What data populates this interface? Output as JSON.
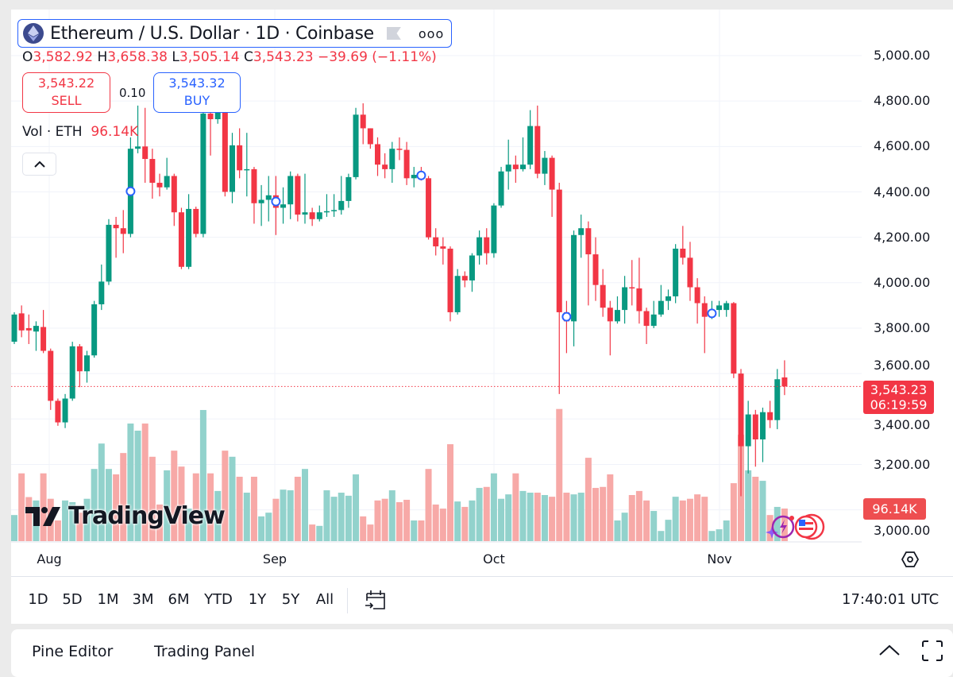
{
  "header": {
    "title": "Ethereum / U.S. Dollar · 1D · Coinbase",
    "more_label": "ooo",
    "ohlc": {
      "o_key": "O",
      "o": "3,582.92",
      "h_key": "H",
      "h": "3,658.38",
      "l_key": "L",
      "l": "3,505.14",
      "c_key": "C",
      "c": "3,543.23",
      "change": "−39.69 (−1.11%)"
    },
    "sell": {
      "price": "3,543.22",
      "label": "SELL"
    },
    "buy": {
      "price": "3,543.32",
      "label": "BUY"
    },
    "spread": "0.10",
    "volume": {
      "label": "Vol · ETH",
      "value": "96.14K"
    },
    "collapse_icon": "chevron-up"
  },
  "price_axis": [
    "5,000.00",
    "4,800.00",
    "4,600.00",
    "4,400.00",
    "4,200.00",
    "4,000.00",
    "3,800.00",
    "3,600.00",
    "3,400.00",
    "3,200.00",
    "3,000.00"
  ],
  "last_price": {
    "value": "3,543.23",
    "countdown": "06:19:59"
  },
  "volume_label": "96.14K",
  "time_axis": [
    "Aug",
    "Sep",
    "Oct",
    "Nov"
  ],
  "logo": "TradingView",
  "range_bar": {
    "ranges": [
      "1D",
      "5D",
      "1M",
      "3M",
      "6M",
      "YTD",
      "1Y",
      "5Y",
      "All"
    ],
    "clock": "17:40:01 UTC"
  },
  "bottom_panel": {
    "tabs": [
      "Pine Editor",
      "Trading Panel"
    ]
  },
  "colors": {
    "up": "#089981",
    "down": "#f23645",
    "vol_up": "#92d2cc",
    "vol_down": "#f7a9a7",
    "accent": "#2962ff"
  },
  "chart_data": {
    "type": "candlestick",
    "title": "Ethereum / U.S. Dollar · 1D · Coinbase",
    "ylim": [
      3000,
      5000
    ],
    "xlabel_ticks": [
      "Aug",
      "Sep",
      "Oct",
      "Nov"
    ],
    "columns": [
      "open",
      "high",
      "low",
      "close",
      "volume_k"
    ],
    "event_markers_candle_index": [
      16,
      36,
      56,
      76,
      96
    ],
    "candles": [
      [
        3740,
        3870,
        3730,
        3860,
        77
      ],
      [
        3865,
        3900,
        3760,
        3790,
        200
      ],
      [
        3800,
        3860,
        3730,
        3790,
        130
      ],
      [
        3785,
        3830,
        3700,
        3810,
        120
      ],
      [
        3805,
        3880,
        3690,
        3700,
        200
      ],
      [
        3700,
        3710,
        3440,
        3480,
        125
      ],
      [
        3480,
        3490,
        3370,
        3385,
        61
      ],
      [
        3385,
        3510,
        3360,
        3490,
        120
      ],
      [
        3490,
        3740,
        3480,
        3720,
        115
      ],
      [
        3720,
        3730,
        3540,
        3610,
        84
      ],
      [
        3610,
        3700,
        3560,
        3680,
        125
      ],
      [
        3680,
        3920,
        3670,
        3905,
        213
      ],
      [
        3905,
        4080,
        3880,
        4005,
        288
      ],
      [
        4005,
        4280,
        3990,
        4255,
        213
      ],
      [
        4255,
        4290,
        4110,
        4240,
        197
      ],
      [
        4240,
        4320,
        4130,
        4215,
        260
      ],
      [
        4215,
        4640,
        4200,
        4590,
        347
      ],
      [
        4590,
        4780,
        4570,
        4600,
        326
      ],
      [
        4600,
        4770,
        4440,
        4545,
        347
      ],
      [
        4545,
        4590,
        4370,
        4440,
        249
      ],
      [
        4440,
        4480,
        4380,
        4420,
        108
      ],
      [
        4420,
        4550,
        4410,
        4470,
        209
      ],
      [
        4470,
        4480,
        4250,
        4310,
        267
      ],
      [
        4310,
        4330,
        4060,
        4070,
        220
      ],
      [
        4070,
        4390,
        4060,
        4325,
        96
      ],
      [
        4325,
        4335,
        4200,
        4215,
        200
      ],
      [
        4215,
        4800,
        4200,
        4745,
        387
      ],
      [
        4745,
        4830,
        4560,
        4720,
        200
      ],
      [
        4720,
        4840,
        4700,
        4760,
        148
      ],
      [
        4760,
        4790,
        4380,
        4400,
        267
      ],
      [
        4400,
        4660,
        4350,
        4605,
        249
      ],
      [
        4605,
        4680,
        4460,
        4495,
        190
      ],
      [
        4495,
        4660,
        4380,
        4500,
        143
      ],
      [
        4500,
        4510,
        4260,
        4350,
        190
      ],
      [
        4350,
        4430,
        4250,
        4365,
        73
      ],
      [
        4365,
        4470,
        4270,
        4385,
        84
      ],
      [
        4385,
        4470,
        4210,
        4330,
        125
      ],
      [
        4330,
        4420,
        4260,
        4345,
        152
      ],
      [
        4345,
        4490,
        4280,
        4470,
        150
      ],
      [
        4470,
        4480,
        4270,
        4300,
        190
      ],
      [
        4300,
        4480,
        4260,
        4310,
        213
      ],
      [
        4310,
        4330,
        4250,
        4280,
        49
      ],
      [
        4280,
        4340,
        4270,
        4310,
        45
      ],
      [
        4310,
        4390,
        4290,
        4315,
        150
      ],
      [
        4315,
        4390,
        4290,
        4320,
        131
      ],
      [
        4320,
        4470,
        4300,
        4360,
        143
      ],
      [
        4360,
        4480,
        4330,
        4465,
        134
      ],
      [
        4465,
        4770,
        4455,
        4740,
        197
      ],
      [
        4740,
        4790,
        4610,
        4680,
        73
      ],
      [
        4680,
        4680,
        4590,
        4610,
        49
      ],
      [
        4610,
        4640,
        4470,
        4520,
        120
      ],
      [
        4520,
        4570,
        4460,
        4500,
        125
      ],
      [
        4500,
        4620,
        4440,
        4590,
        150
      ],
      [
        4590,
        4640,
        4540,
        4585,
        115
      ],
      [
        4585,
        4620,
        4430,
        4460,
        122
      ],
      [
        4460,
        4510,
        4420,
        4475,
        61
      ],
      [
        4475,
        4510,
        4450,
        4470,
        61
      ],
      [
        4460,
        4470,
        4190,
        4200,
        213
      ],
      [
        4200,
        4240,
        4120,
        4160,
        108
      ],
      [
        4160,
        4200,
        4080,
        4150,
        96
      ],
      [
        4150,
        4160,
        3830,
        3870,
        286
      ],
      [
        3870,
        4060,
        3860,
        4030,
        117
      ],
      [
        4030,
        4050,
        3980,
        4010,
        101
      ],
      [
        4010,
        4130,
        3960,
        4120,
        120
      ],
      [
        4120,
        4230,
        4080,
        4200,
        157
      ],
      [
        4200,
        4240,
        4080,
        4130,
        160
      ],
      [
        4130,
        4350,
        4110,
        4340,
        200
      ],
      [
        4340,
        4510,
        4330,
        4490,
        125
      ],
      [
        4490,
        4630,
        4410,
        4520,
        138
      ],
      [
        4520,
        4560,
        4440,
        4500,
        200
      ],
      [
        4500,
        4640,
        4490,
        4520,
        148
      ],
      [
        4520,
        4760,
        4500,
        4690,
        143
      ],
      [
        4690,
        4780,
        4460,
        4480,
        143
      ],
      [
        4480,
        4580,
        4430,
        4550,
        136
      ],
      [
        4550,
        4560,
        4290,
        4410,
        131
      ],
      [
        4410,
        4440,
        3510,
        3870,
        390
      ],
      [
        3870,
        3920,
        3690,
        3830,
        143
      ],
      [
        3830,
        4230,
        3720,
        4210,
        138
      ],
      [
        4210,
        4300,
        4110,
        4240,
        143
      ],
      [
        4240,
        4270,
        3900,
        4125,
        246
      ],
      [
        4125,
        4200,
        3920,
        3990,
        157
      ],
      [
        3990,
        4060,
        3850,
        3890,
        160
      ],
      [
        3890,
        3920,
        3680,
        3830,
        197
      ],
      [
        3830,
        3940,
        3820,
        3880,
        61
      ],
      [
        3880,
        4030,
        3820,
        3980,
        84
      ],
      [
        3980,
        4100,
        3900,
        3975,
        136
      ],
      [
        3975,
        4110,
        3820,
        3875,
        148
      ],
      [
        3875,
        3890,
        3730,
        3810,
        120
      ],
      [
        3810,
        3920,
        3800,
        3860,
        89
      ],
      [
        3860,
        3990,
        3850,
        3920,
        30
      ],
      [
        3920,
        3970,
        3880,
        3940,
        63
      ],
      [
        3940,
        4170,
        3910,
        4150,
        131
      ],
      [
        4150,
        4250,
        4080,
        4110,
        120
      ],
      [
        4110,
        4180,
        3920,
        3980,
        125
      ],
      [
        3980,
        4020,
        3820,
        3910,
        138
      ],
      [
        3910,
        3940,
        3690,
        3850,
        131
      ],
      [
        3850,
        3920,
        3840,
        3880,
        30
      ],
      [
        3880,
        3920,
        3850,
        3900,
        35
      ],
      [
        3880,
        3920,
        3850,
        3910,
        61
      ],
      [
        3910,
        3915,
        3580,
        3600,
        171
      ],
      [
        3600,
        3620,
        3060,
        3280,
        314
      ],
      [
        3280,
        3480,
        3160,
        3420,
        209
      ],
      [
        3420,
        3440,
        3190,
        3310,
        190
      ],
      [
        3310,
        3450,
        3210,
        3430,
        178
      ],
      [
        3430,
        3480,
        3360,
        3395,
        77
      ],
      [
        3395,
        3620,
        3355,
        3575,
        101
      ],
      [
        3582.92,
        3658.38,
        3505.14,
        3543.23,
        96.14
      ]
    ]
  }
}
